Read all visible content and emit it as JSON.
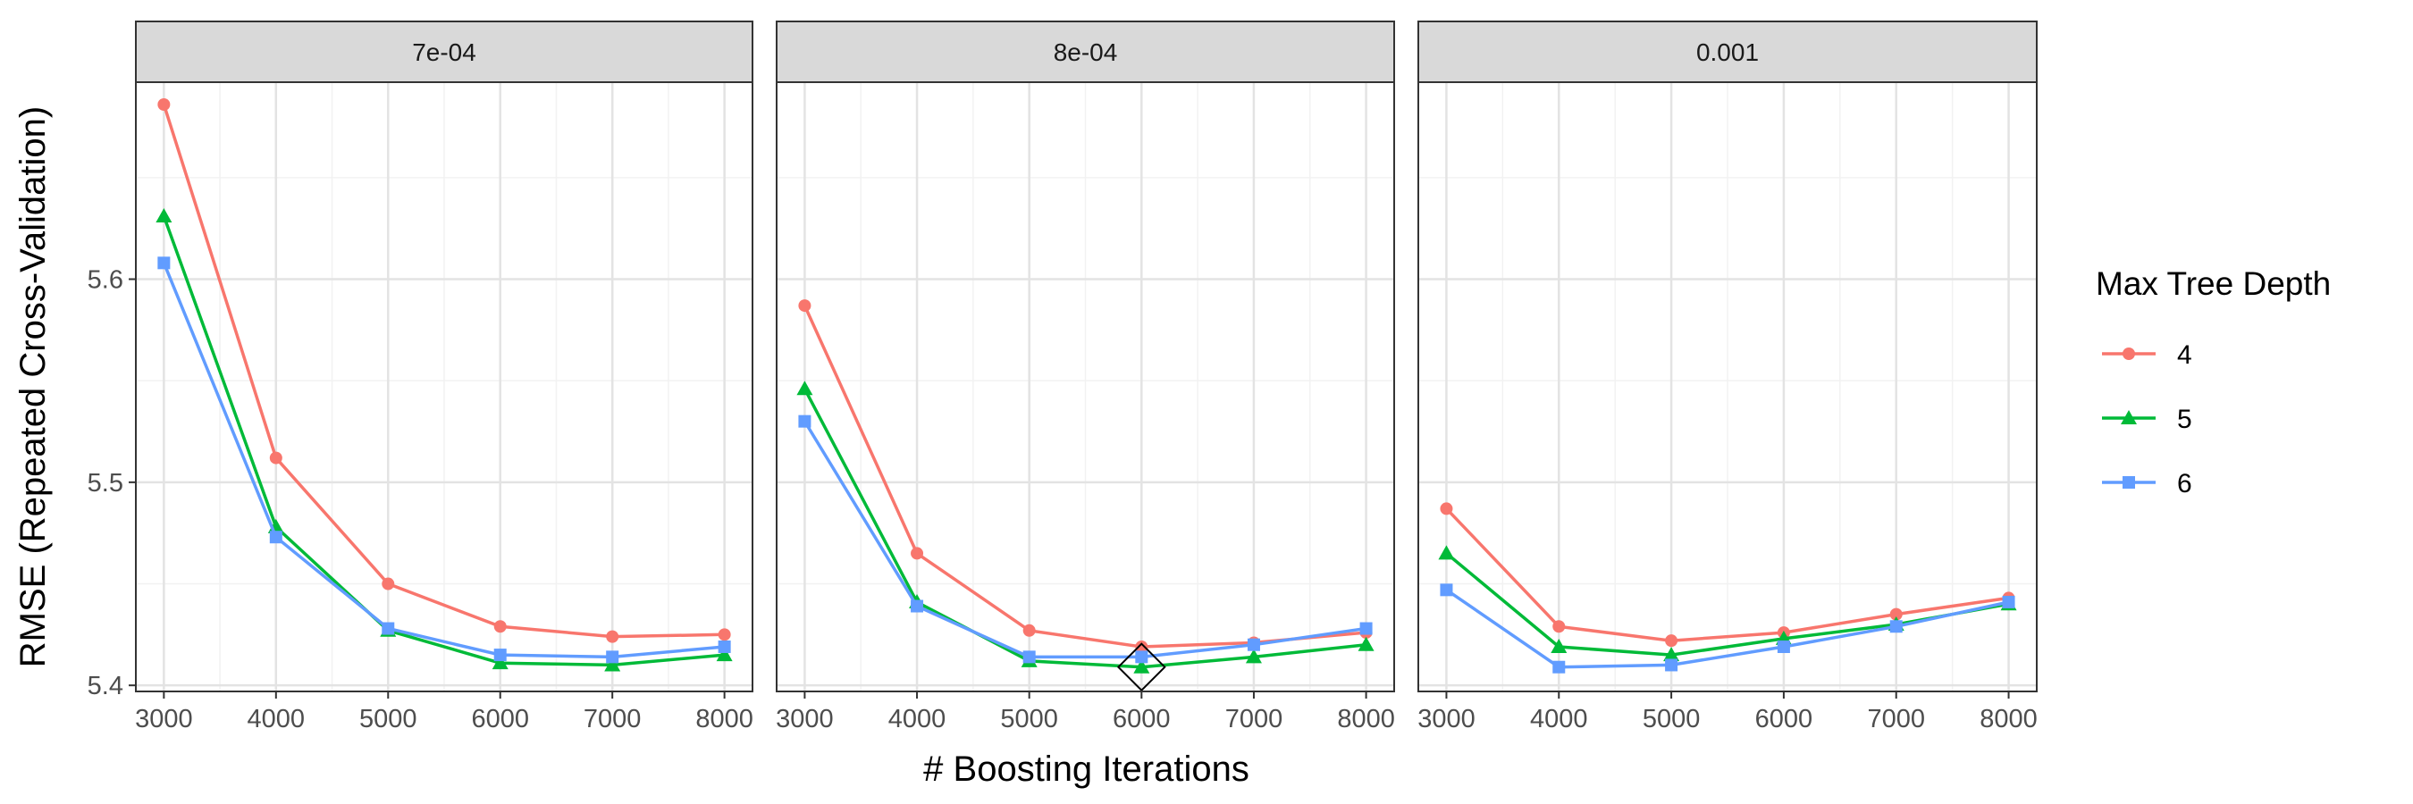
{
  "chart_data": {
    "type": "line",
    "facets": [
      "7e-04",
      "8e-04",
      "0.001"
    ],
    "x": [
      3000,
      4000,
      5000,
      6000,
      7000,
      8000
    ],
    "xlabel": "# Boosting Iterations",
    "ylabel": "RMSE (Repeated Cross-Validation)",
    "xlim": [
      2750,
      8250
    ],
    "ylim": [
      5.397,
      5.697
    ],
    "x_ticks": [
      3000,
      4000,
      5000,
      6000,
      7000,
      8000
    ],
    "y_ticks": [
      5.4,
      5.5,
      5.6
    ],
    "grid": true,
    "legend": {
      "title": "Max Tree Depth",
      "position": "right"
    },
    "series": [
      {
        "name": "4",
        "color": "#F8766D",
        "marker": "circle",
        "values": [
          [
            5.686,
            5.512,
            5.45,
            5.429,
            5.424,
            5.425
          ],
          [
            5.587,
            5.465,
            5.427,
            5.419,
            5.421,
            5.426
          ],
          [
            5.487,
            5.429,
            5.422,
            5.426,
            5.435,
            5.443
          ]
        ]
      },
      {
        "name": "5",
        "color": "#00BA38",
        "marker": "triangle",
        "values": [
          [
            5.631,
            5.478,
            5.427,
            5.411,
            5.41,
            5.415
          ],
          [
            5.546,
            5.441,
            5.412,
            5.409,
            5.414,
            5.42
          ],
          [
            5.465,
            5.419,
            5.415,
            5.423,
            5.43,
            5.44
          ]
        ]
      },
      {
        "name": "6",
        "color": "#619CFF",
        "marker": "square",
        "values": [
          [
            5.608,
            5.473,
            5.428,
            5.415,
            5.414,
            5.419
          ],
          [
            5.53,
            5.439,
            5.414,
            5.414,
            5.42,
            5.428
          ],
          [
            5.447,
            5.409,
            5.41,
            5.419,
            5.429,
            5.441
          ]
        ]
      }
    ],
    "best_point": {
      "facet": "8e-04",
      "x": 6000,
      "y": 5.409,
      "marker": "diamond"
    }
  }
}
